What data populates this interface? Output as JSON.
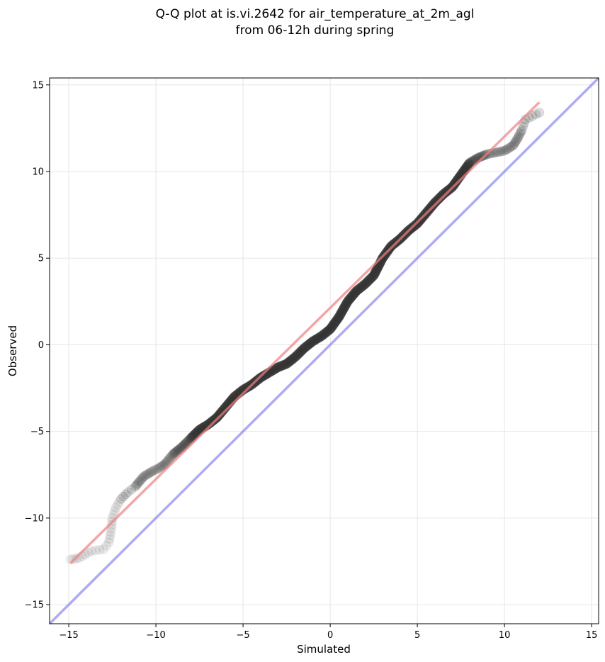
{
  "chart_data": {
    "type": "scatter",
    "title_lines": [
      "Q-Q plot at is.vi.2642 for air_temperature_at_2m_agl",
      "from 06-12h during spring"
    ],
    "xlabel": "Simulated",
    "ylabel": "Observed",
    "xlim": [
      -16.1,
      15.4
    ],
    "ylim": [
      -16.1,
      15.4
    ],
    "xticks": [
      -15,
      -10,
      -5,
      0,
      5,
      10,
      15
    ],
    "yticks": [
      -15,
      -10,
      -5,
      0,
      5,
      10,
      15
    ],
    "xtick_labels": [
      "−15",
      "−10",
      "−5",
      "0",
      "5",
      "10",
      "15"
    ],
    "ytick_labels": [
      "−15",
      "−10",
      "−5",
      "0",
      "5",
      "10",
      "15"
    ],
    "grid": true,
    "colors": {
      "points": "#333333",
      "fit_line": "#f08080",
      "identity_line": "#7f7ff0",
      "grid": "#e6e6e6"
    },
    "fit_line": {
      "x": [
        -14.9,
        12.0
      ],
      "y": [
        -12.6,
        14.0
      ]
    },
    "identity_line": {
      "x": [
        -16.1,
        15.4
      ],
      "y": [
        -16.1,
        15.4
      ]
    },
    "quantile_curve": {
      "x": [
        -14.9,
        -14.4,
        -13.7,
        -13.0,
        -12.7,
        -12.55,
        -12.5,
        -12.3,
        -12.0,
        -11.6,
        -11.2,
        -10.7,
        -10.2,
        -9.8,
        -9.5,
        -9.0,
        -8.5,
        -8.0,
        -7.5,
        -7.0,
        -6.5,
        -6.0,
        -5.5,
        -5.0,
        -4.5,
        -4.0,
        -3.5,
        -3.0,
        -2.5,
        -2.0,
        -1.5,
        -1.0,
        -0.5,
        0.0,
        0.5,
        1.0,
        1.5,
        2.0,
        2.5,
        3.0,
        3.5,
        4.0,
        4.5,
        5.0,
        5.5,
        6.0,
        6.5,
        7.0,
        7.5,
        8.0,
        8.5,
        9.0,
        9.5,
        10.0,
        10.5,
        10.8,
        11.0,
        11.2,
        12.0
      ],
      "y": [
        -12.4,
        -12.3,
        -11.9,
        -11.8,
        -11.4,
        -10.6,
        -10.0,
        -9.4,
        -8.9,
        -8.5,
        -8.2,
        -7.6,
        -7.3,
        -7.1,
        -6.9,
        -6.3,
        -5.9,
        -5.4,
        -4.9,
        -4.6,
        -4.2,
        -3.6,
        -3.0,
        -2.6,
        -2.3,
        -1.9,
        -1.6,
        -1.3,
        -1.1,
        -0.7,
        -0.2,
        0.2,
        0.5,
        0.9,
        1.6,
        2.5,
        3.1,
        3.5,
        4.0,
        5.0,
        5.7,
        6.1,
        6.6,
        7.0,
        7.6,
        8.2,
        8.7,
        9.1,
        9.8,
        10.5,
        10.8,
        11.0,
        11.1,
        11.2,
        11.5,
        12.0,
        12.4,
        13.0,
        13.4
      ]
    }
  }
}
